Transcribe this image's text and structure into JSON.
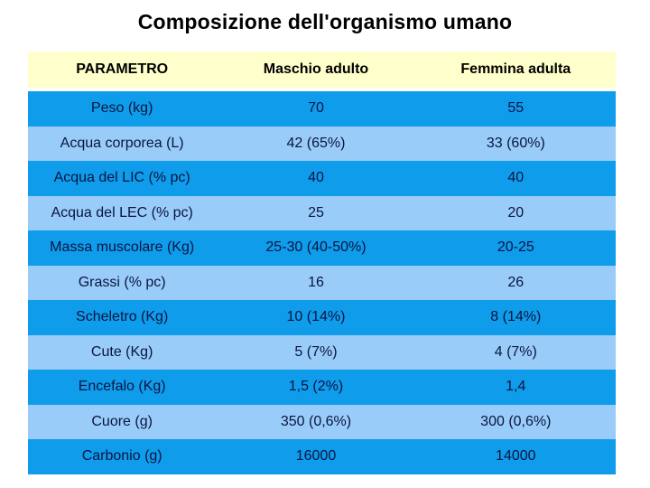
{
  "title": "Composizione dell'organismo umano",
  "table": {
    "columns": [
      "PARAMETRO",
      "Maschio adulto",
      "Femmina adulta"
    ],
    "rows": [
      {
        "parametro": "Peso (kg)",
        "maschio": "70",
        "femmina": "55"
      },
      {
        "parametro": "Acqua corporea (L)",
        "maschio": "42 (65%)",
        "femmina": "33 (60%)"
      },
      {
        "parametro": "Acqua del LIC (% pc)",
        "maschio": "40",
        "femmina": "40"
      },
      {
        "parametro": "Acqua del LEC (% pc)",
        "maschio": "25",
        "femmina": "20"
      },
      {
        "parametro": "Massa muscolare (Kg)",
        "maschio": "25-30 (40-50%)",
        "femmina": "20-25"
      },
      {
        "parametro": "Grassi (% pc)",
        "maschio": "16",
        "femmina": "26"
      },
      {
        "parametro": "Scheletro (Kg)",
        "maschio": "10 (14%)",
        "femmina": "8 (14%)"
      },
      {
        "parametro": "Cute (Kg)",
        "maschio": "5 (7%)",
        "femmina": "4 (7%)"
      },
      {
        "parametro": "Encefalo (Kg)",
        "maschio": "1,5 (2%)",
        "femmina": "1,4"
      },
      {
        "parametro": "Cuore (g)",
        "maschio": "350 (0,6%)",
        "femmina": "300 (0,6%)"
      },
      {
        "parametro": "Carbonio (g)",
        "maschio": "16000",
        "femmina": "14000"
      }
    ]
  },
  "chart_data": {
    "type": "table",
    "title": "Composizione dell'organismo umano",
    "columns": [
      "PARAMETRO",
      "Maschio adulto",
      "Femmina adulta"
    ],
    "rows": [
      [
        "Peso (kg)",
        "70",
        "55"
      ],
      [
        "Acqua corporea (L)",
        "42 (65%)",
        "33 (60%)"
      ],
      [
        "Acqua del LIC (% pc)",
        "40",
        "40"
      ],
      [
        "Acqua del LEC (% pc)",
        "25",
        "20"
      ],
      [
        "Massa muscolare (Kg)",
        "25-30 (40-50%)",
        "20-25"
      ],
      [
        "Grassi (% pc)",
        "16",
        "26"
      ],
      [
        "Scheletro (Kg)",
        "10 (14%)",
        "8 (14%)"
      ],
      [
        "Cute (Kg)",
        "5 (7%)",
        "4 (7%)"
      ],
      [
        "Encefalo (Kg)",
        "1,5 (2%)",
        "1,4"
      ],
      [
        "Cuore (g)",
        "350 (0,6%)",
        "300 (0,6%)"
      ],
      [
        "Carbonio (g)",
        "16000",
        "14000"
      ]
    ]
  },
  "colors": {
    "title_color": "#000000",
    "header_bg": "#FFFFCC",
    "row_blue": "#0F9CEB",
    "row_light": "#99CCF8",
    "cell_text": "#0A1540",
    "page_bg": "#FFFFFF"
  }
}
